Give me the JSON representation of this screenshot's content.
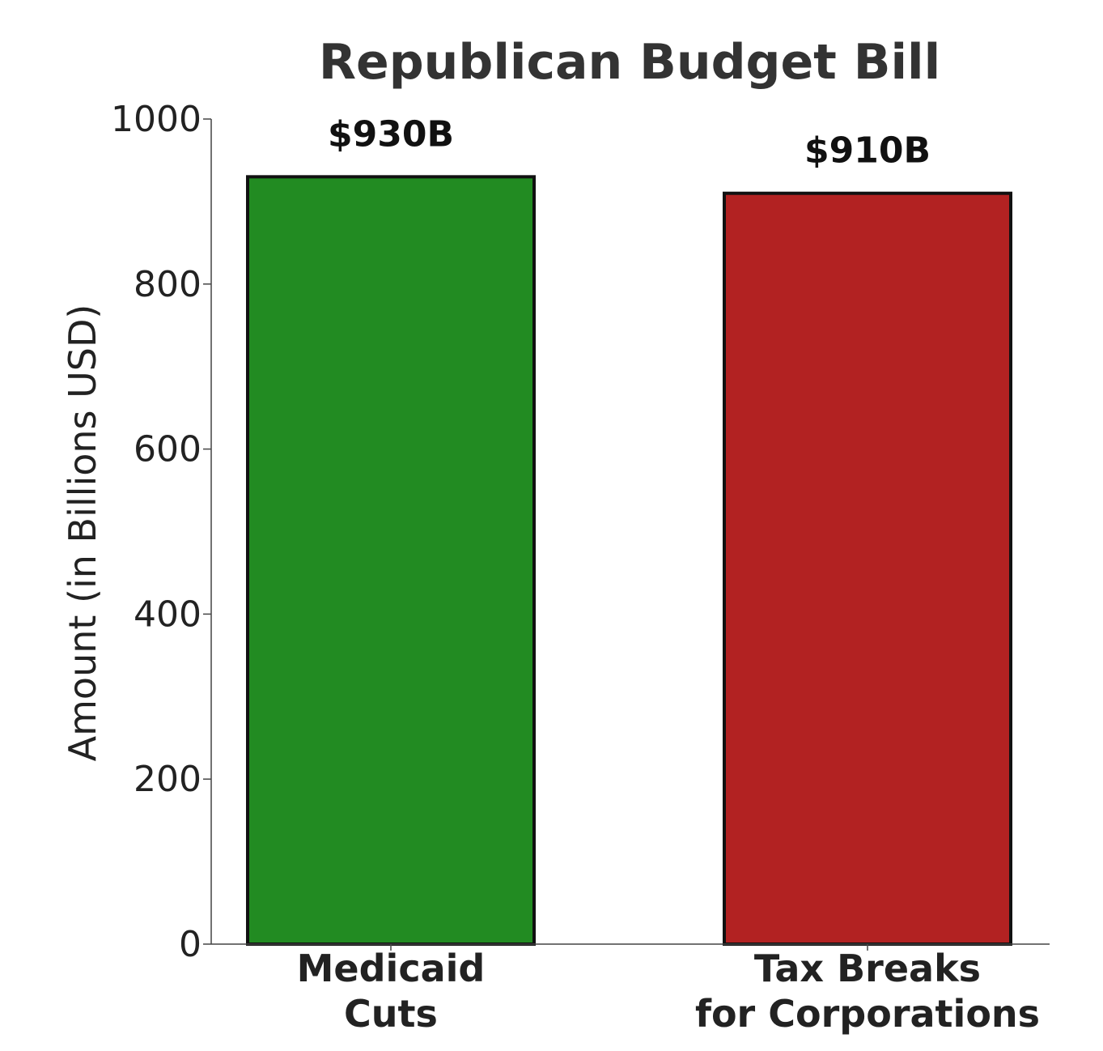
{
  "chart_data": {
    "type": "bar",
    "title": "Republican Budget Bill",
    "xlabel": "",
    "ylabel": "Amount (in Billions USD)",
    "categories": [
      [
        "Medicaid",
        "Cuts"
      ],
      [
        "Tax Breaks",
        "for Corporations"
      ]
    ],
    "values": [
      930,
      910
    ],
    "value_labels": [
      "$930B",
      "$910B"
    ],
    "colors": [
      "#228b22",
      "#b22222"
    ],
    "edge_color": "#111111",
    "ylim": [
      0,
      1000
    ],
    "yticks": [
      0,
      200,
      400,
      600,
      800,
      1000
    ],
    "grid": false,
    "legend": "none"
  }
}
